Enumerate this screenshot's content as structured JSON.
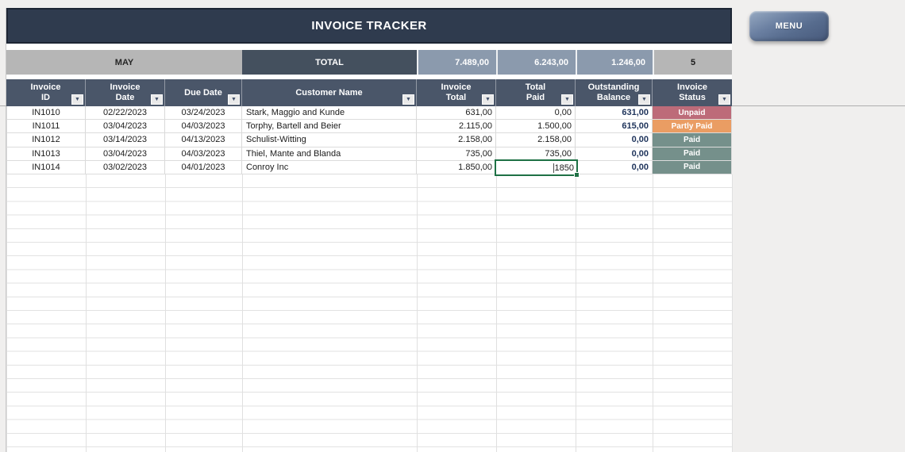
{
  "page": {
    "title": "INVOICE TRACKER",
    "menu_label": "MENU"
  },
  "summary": {
    "month": "MAY",
    "total_label": "TOTAL",
    "invoice_total": "7.489,00",
    "total_paid": "6.243,00",
    "outstanding_balance": "1.246,00",
    "invoice_count": "5"
  },
  "table": {
    "headers": [
      {
        "lines": [
          "Invoice",
          "ID"
        ]
      },
      {
        "lines": [
          "Invoice",
          "Date"
        ]
      },
      {
        "lines": [
          "Due Date"
        ]
      },
      {
        "lines": [
          "Customer Name"
        ]
      },
      {
        "lines": [
          "Invoice",
          "Total"
        ]
      },
      {
        "lines": [
          "Total",
          "Paid"
        ]
      },
      {
        "lines": [
          "Outstanding",
          "Balance"
        ]
      },
      {
        "lines": [
          "Invoice",
          "Status"
        ]
      }
    ],
    "rows": [
      {
        "invoice_id": "IN1010",
        "invoice_date": "02/22/2023",
        "due_date": "03/24/2023",
        "customer_name": "Stark, Maggio and Kunde",
        "invoice_total": "631,00",
        "total_paid": "0,00",
        "outstanding_balance": "631,00",
        "status": "Unpaid"
      },
      {
        "invoice_id": "IN1011",
        "invoice_date": "03/04/2023",
        "due_date": "04/03/2023",
        "customer_name": "Torphy, Bartell and Beier",
        "invoice_total": "2.115,00",
        "total_paid": "1.500,00",
        "outstanding_balance": "615,00",
        "status": "Partly Paid"
      },
      {
        "invoice_id": "IN1012",
        "invoice_date": "03/14/2023",
        "due_date": "04/13/2023",
        "customer_name": "Schulist-Witting",
        "invoice_total": "2.158,00",
        "total_paid": "2.158,00",
        "outstanding_balance": "0,00",
        "status": "Paid"
      },
      {
        "invoice_id": "IN1013",
        "invoice_date": "03/04/2023",
        "due_date": "04/03/2023",
        "customer_name": "Thiel, Mante and Blanda",
        "invoice_total": "735,00",
        "total_paid": "735,00",
        "outstanding_balance": "0,00",
        "status": "Paid"
      },
      {
        "invoice_id": "IN1014",
        "invoice_date": "03/02/2023",
        "due_date": "04/01/2023",
        "customer_name": "Conroy Inc",
        "invoice_total": "1.850,00",
        "total_paid": "",
        "outstanding_balance": "0,00",
        "status": "Paid"
      }
    ]
  },
  "edit_cell": {
    "value": "1850",
    "row_index": 4,
    "column": "total_paid"
  },
  "icons": {
    "filter_glyph": "▼"
  },
  "colors": {
    "title_bar": "#2f3b4e",
    "header_row": "#4a5669",
    "summary_value_bg": "#8b9aad",
    "summary_muted_bg": "#b6b6b6",
    "summary_total_bg": "#44505e",
    "status_unpaid": "#bd6b79",
    "status_partly_paid": "#ea9d63",
    "status_paid": "#75908b",
    "selection_border": "#1e7145"
  }
}
